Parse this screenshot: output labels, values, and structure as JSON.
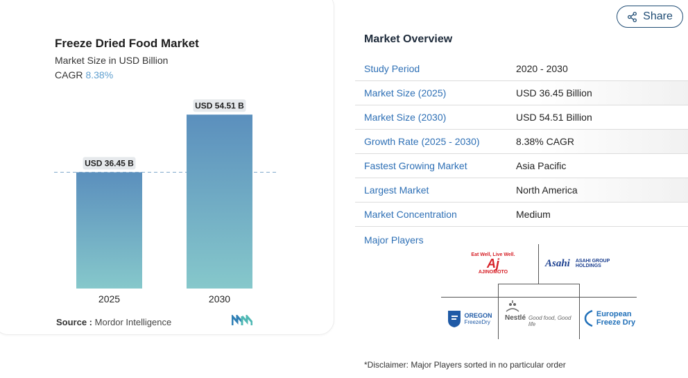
{
  "share": {
    "label": "Share",
    "icon": "share-icon"
  },
  "chart": {
    "title": "Freeze Dried Food Market",
    "subtitle": "Market Size in USD Billion",
    "cagr_label": "CAGR",
    "cagr_value": "8.38%",
    "source_label": "Source :",
    "source_value": "Mordor Intelligence"
  },
  "chart_data": {
    "type": "bar",
    "categories": [
      "2025",
      "2030"
    ],
    "values": [
      36.45,
      54.51
    ],
    "data_labels": [
      "USD 36.45 B",
      "USD 54.51 B"
    ],
    "title": "Freeze Dried Food Market",
    "subtitle": "Market Size in USD Billion",
    "ylim": [
      0,
      60
    ],
    "grid": false,
    "colors": {
      "bar_top": "#5b8fbd",
      "bar_bottom": "#86c8cb",
      "reference_line": "#5b8fbd"
    }
  },
  "overview": {
    "title": "Market Overview",
    "rows": [
      {
        "key": "Study Period",
        "value": "2020 - 2030"
      },
      {
        "key": "Market Size (2025)",
        "value": "USD 36.45 Billion"
      },
      {
        "key": "Market Size (2030)",
        "value": "USD 54.51 Billion"
      },
      {
        "key": "Growth Rate (2025 - 2030)",
        "value": "8.38% CAGR"
      },
      {
        "key": "Fastest Growing Market",
        "value": "Asia Pacific"
      },
      {
        "key": "Largest Market",
        "value": "North America"
      },
      {
        "key": "Market Concentration",
        "value": "Medium"
      }
    ],
    "major_players_label": "Major Players",
    "players": [
      {
        "name": "Ajinomoto",
        "tagline": "Eat Well, Live Well.",
        "mark": "AJINOMOTO"
      },
      {
        "name": "Asahi Group Holdings",
        "mark": "Asahi",
        "text": "ASAHI GROUP HOLDINGS"
      },
      {
        "name": "Oregon Freeze Dry",
        "line1": "OREGON",
        "line2": "FreezeDry"
      },
      {
        "name": "Nestle",
        "mark": "Nestlé",
        "tagline": "Good food, Good life"
      },
      {
        "name": "European Freeze Dry",
        "line1": "European",
        "line2": "Freeze Dry"
      }
    ],
    "disclaimer": "*Disclaimer: Major Players sorted in no particular order"
  },
  "colors": {
    "accent": "#2d6fb5",
    "share_border": "#1f4c74"
  }
}
